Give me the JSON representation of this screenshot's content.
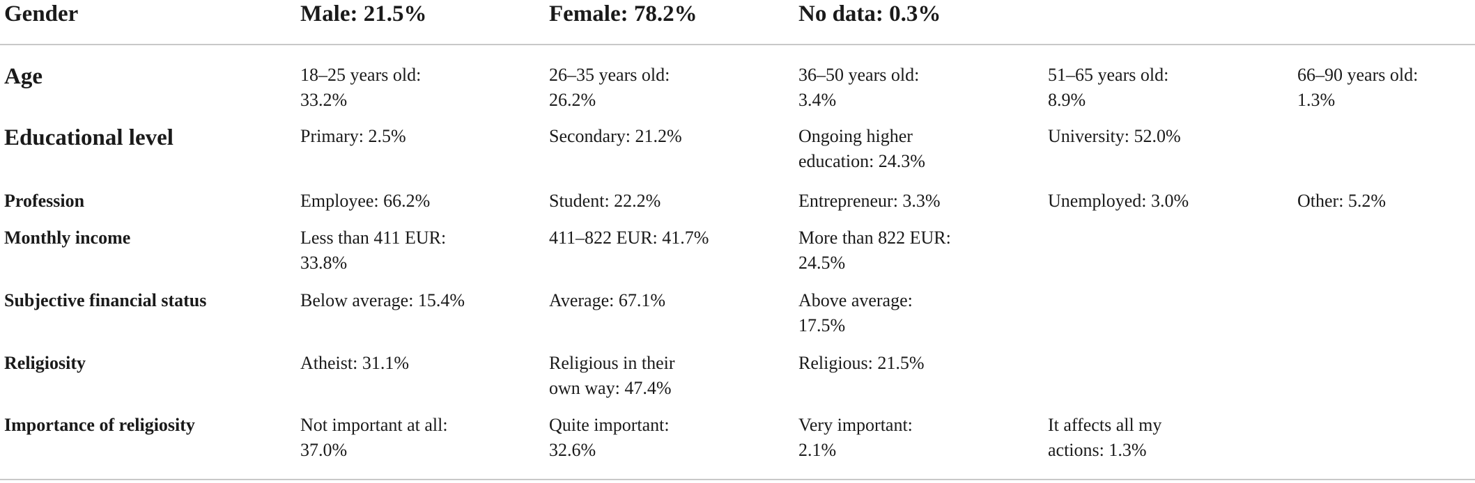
{
  "header": {
    "label": "Gender",
    "male": "Male: 21.5%",
    "female": "Female: 78.2%",
    "no_data": "No data: 0.3%"
  },
  "rows": [
    {
      "label": "Age",
      "cells": [
        [
          "18–25 years old:",
          "33.2%"
        ],
        [
          "26–35 years old:",
          "26.2%"
        ],
        [
          "36–50 years old:",
          "3.4%"
        ],
        [
          "51–65 years old:",
          "8.9%"
        ],
        [
          "66–90 years old:",
          "1.3%"
        ]
      ]
    },
    {
      "label": "Educational level",
      "cells": [
        [
          "Primary: 2.5%"
        ],
        [
          "Secondary: 21.2%"
        ],
        [
          "Ongoing higher",
          "education: 24.3%"
        ],
        [
          "University: 52.0%"
        ]
      ]
    },
    {
      "label": "Profession",
      "cells": [
        [
          "Employee: 66.2%"
        ],
        [
          "Student: 22.2%"
        ],
        [
          "Entrepreneur: 3.3%"
        ],
        [
          "Unemployed: 3.0%"
        ],
        [
          "Other: 5.2%"
        ]
      ]
    },
    {
      "label": "Monthly income",
      "cells": [
        [
          "Less than 411 EUR:",
          "33.8%"
        ],
        [
          "411–822 EUR: 41.7%"
        ],
        [
          "More than 822 EUR:",
          "24.5%"
        ]
      ]
    },
    {
      "label": "Subjective financial status",
      "cells": [
        [
          "Below average: 15.4%"
        ],
        [
          "Average: 67.1%"
        ],
        [
          "Above average:",
          "17.5%"
        ]
      ]
    },
    {
      "label": "Religiosity",
      "cells": [
        [
          "Atheist: 31.1%"
        ],
        [
          "Religious in their",
          "own way: 47.4%"
        ],
        [
          "Religious: 21.5%"
        ]
      ]
    },
    {
      "label": "Importance of religiosity",
      "cells": [
        [
          "Not important at all:",
          "37.0%"
        ],
        [
          "Quite important:",
          "32.6%"
        ],
        [
          "Very important:",
          "2.1%"
        ],
        [
          "It affects all my",
          "actions: 1.3%"
        ]
      ]
    }
  ]
}
